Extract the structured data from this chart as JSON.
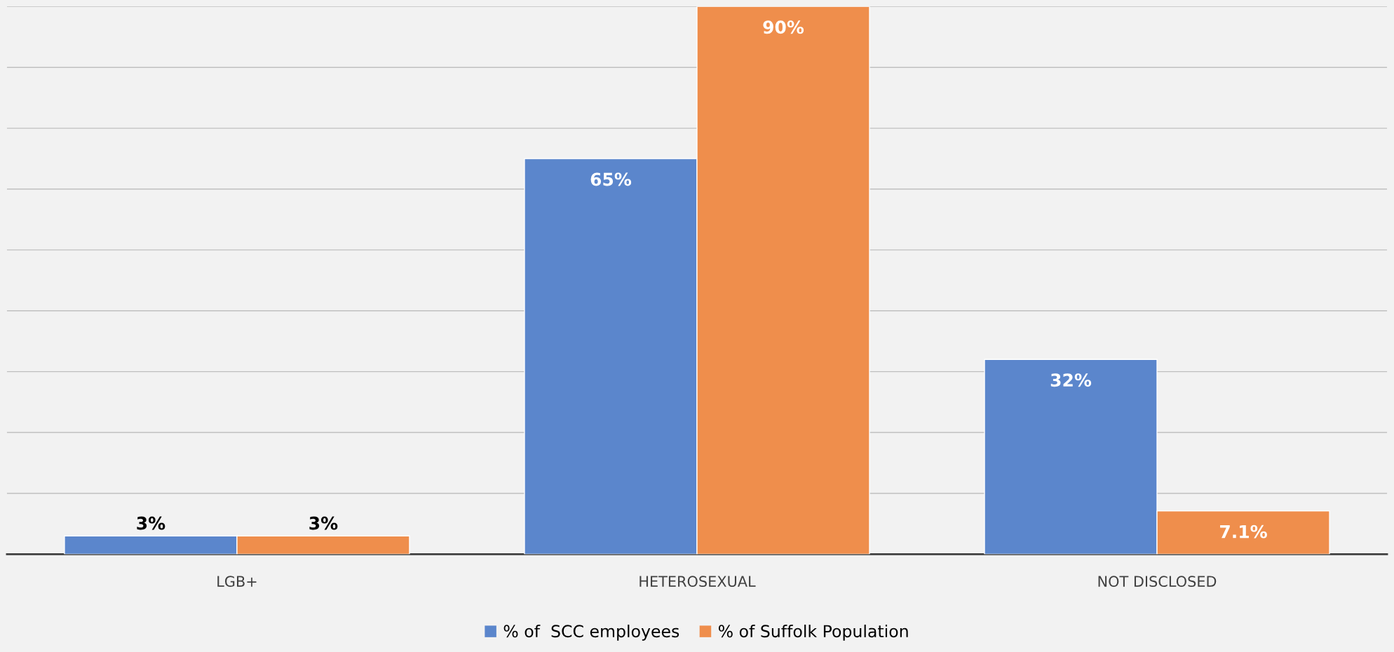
{
  "chart_data": {
    "type": "bar",
    "categories": [
      "LGB+",
      "HETEROSEXUAL",
      "NOT DISCLOSED"
    ],
    "series": [
      {
        "name": "% of  SCC employees",
        "color": "#5b86cc",
        "values": [
          3,
          65,
          32
        ],
        "value_labels": [
          "3%",
          "65%",
          "32%"
        ]
      },
      {
        "name": "% of Suffolk Population",
        "color": "#ef8e4c",
        "values": [
          3,
          90,
          7.1
        ],
        "value_labels": [
          "3%",
          "90%",
          "7.1%"
        ]
      }
    ],
    "ylim": [
      0,
      90
    ],
    "yticks": [
      {
        "value": 0,
        "label": null
      },
      {
        "value": 10,
        "label": null
      },
      {
        "value": 20,
        "label": null
      },
      {
        "value": 30,
        "label": null
      },
      {
        "value": 40,
        "label": null
      },
      {
        "value": 50,
        "label": null
      },
      {
        "value": 60,
        "label": null
      },
      {
        "value": 70,
        "label": null
      },
      {
        "value": 80,
        "label": null
      },
      {
        "value": 90,
        "label": null
      }
    ],
    "tick_labels": "x",
    "grid": "y",
    "legend": "bottom"
  }
}
